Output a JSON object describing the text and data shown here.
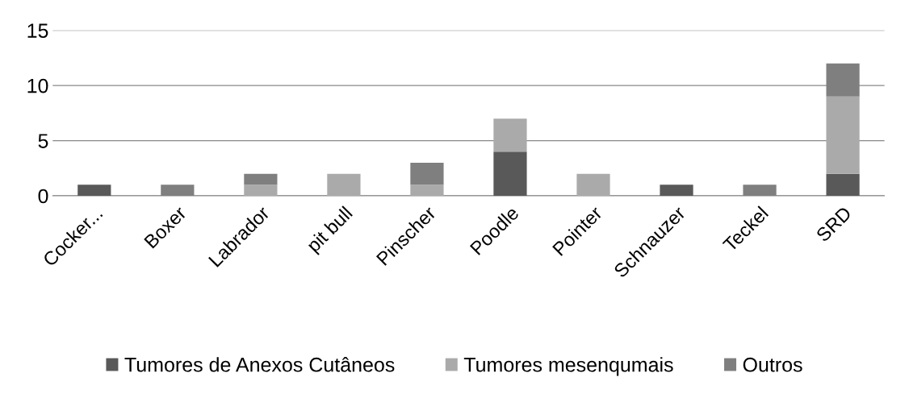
{
  "chart_data": {
    "type": "bar",
    "stacked": true,
    "categories": [
      "Cocker...",
      "Boxer",
      "Labrador",
      "pit bull",
      "Pinscher",
      "Poodle",
      "Pointer",
      "Schnauzer",
      "Teckel",
      "SRD"
    ],
    "series": [
      {
        "name": "Tumores de Anexos Cutâneos",
        "color": "#595959",
        "values": [
          1,
          0,
          0,
          0,
          0,
          4,
          0,
          1,
          0,
          2
        ]
      },
      {
        "name": "Tumores mesenqumais",
        "color": "#aaaaaa",
        "values": [
          0,
          0,
          1,
          2,
          1,
          3,
          2,
          0,
          0,
          7
        ]
      },
      {
        "name": "Outros",
        "color": "#7f7f7f",
        "values": [
          0,
          1,
          1,
          0,
          2,
          0,
          0,
          0,
          1,
          3
        ]
      }
    ],
    "ylim": [
      0,
      15
    ],
    "yticks": [
      0,
      5,
      10,
      15
    ],
    "grid": "y",
    "legend": "bottom"
  }
}
